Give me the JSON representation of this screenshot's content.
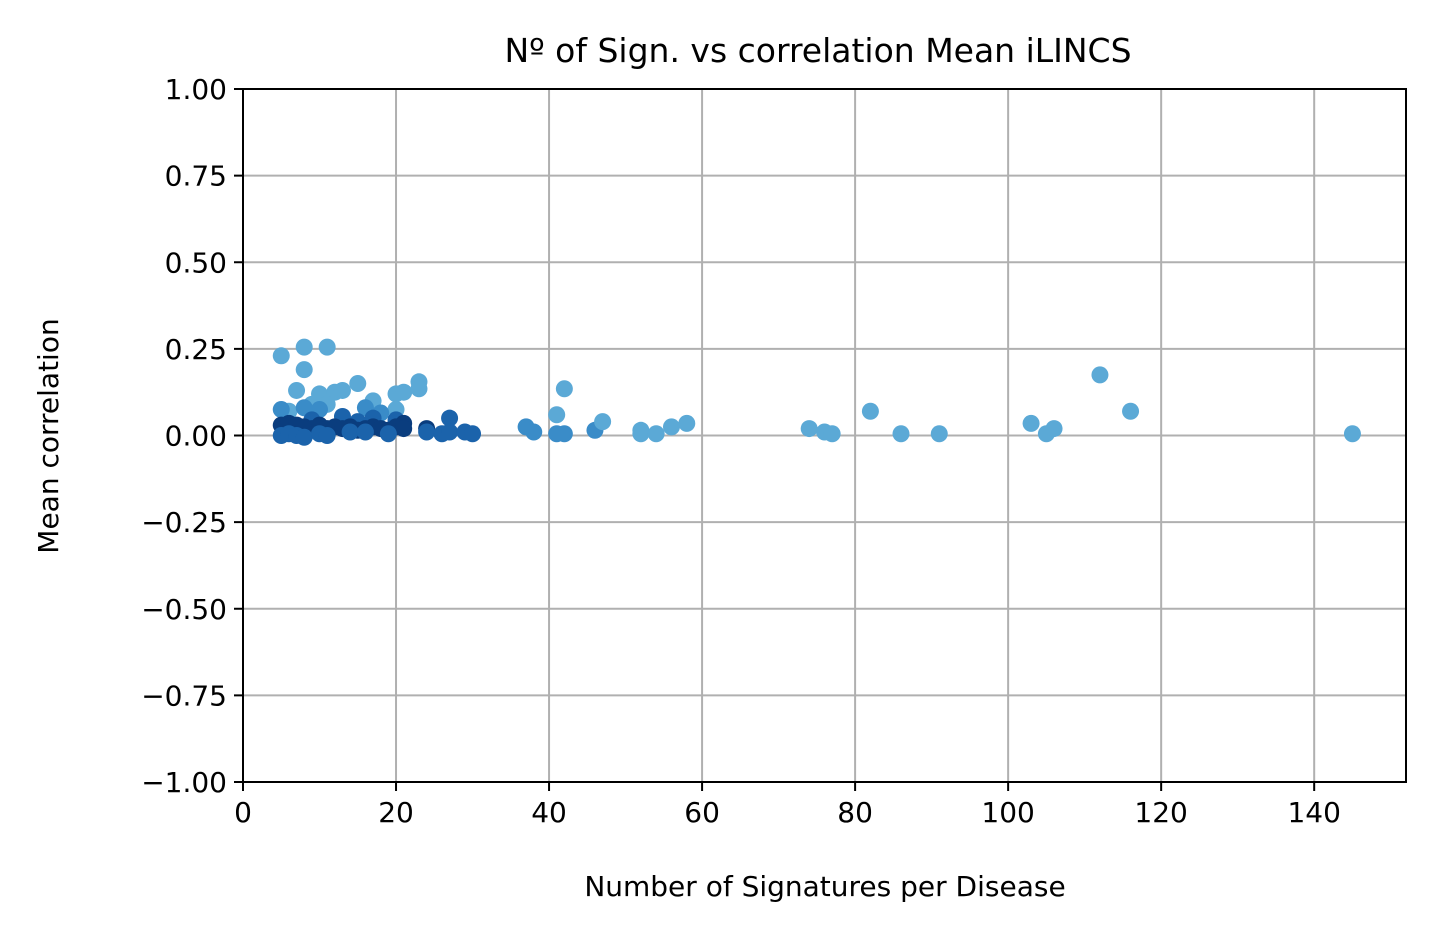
{
  "chart_data": {
    "type": "scatter",
    "title": "Nº of Sign. vs correlation Mean iLINCS",
    "xlabel": "Number of Signatures per Disease",
    "ylabel": "Mean correlation",
    "xlim": [
      0,
      152
    ],
    "ylim": [
      -1.0,
      1.0
    ],
    "grid": true,
    "legend": "none",
    "x_ticks": [
      0,
      20,
      40,
      60,
      80,
      100,
      120,
      140
    ],
    "x_tick_labels": [
      "0",
      "20",
      "40",
      "60",
      "80",
      "100",
      "120",
      "140"
    ],
    "y_ticks": [
      1.0,
      0.75,
      0.5,
      0.25,
      0.0,
      -0.25,
      -0.5,
      -0.75,
      -1.0
    ],
    "y_tick_labels": [
      "1.00",
      "0.75",
      "0.50",
      "0.25",
      "0.00",
      "−0.25",
      "−0.50",
      "−0.75",
      "−1.00"
    ],
    "colors": {
      "light": "#5ba9d6",
      "mid": "#3a8cc8",
      "dark": "#1b63ab",
      "darkest": "#0a3d7e",
      "grid": "#b0b0b0",
      "axis": "#000000"
    },
    "points": [
      {
        "x": 5,
        "y": 0.23,
        "c": "light"
      },
      {
        "x": 8,
        "y": 0.255,
        "c": "light"
      },
      {
        "x": 11,
        "y": 0.255,
        "c": "light"
      },
      {
        "x": 8,
        "y": 0.19,
        "c": "light"
      },
      {
        "x": 7,
        "y": 0.13,
        "c": "light"
      },
      {
        "x": 10,
        "y": 0.12,
        "c": "light"
      },
      {
        "x": 12,
        "y": 0.125,
        "c": "light"
      },
      {
        "x": 13,
        "y": 0.13,
        "c": "light"
      },
      {
        "x": 15,
        "y": 0.15,
        "c": "light"
      },
      {
        "x": 17,
        "y": 0.1,
        "c": "light"
      },
      {
        "x": 20,
        "y": 0.12,
        "c": "light"
      },
      {
        "x": 21,
        "y": 0.125,
        "c": "light"
      },
      {
        "x": 23,
        "y": 0.155,
        "c": "light"
      },
      {
        "x": 23,
        "y": 0.135,
        "c": "light"
      },
      {
        "x": 9,
        "y": 0.09,
        "c": "light"
      },
      {
        "x": 11,
        "y": 0.09,
        "c": "light"
      },
      {
        "x": 20,
        "y": 0.075,
        "c": "light"
      },
      {
        "x": 6,
        "y": 0.07,
        "c": "light"
      },
      {
        "x": 5,
        "y": 0.075,
        "c": "mid"
      },
      {
        "x": 8,
        "y": 0.08,
        "c": "mid"
      },
      {
        "x": 10,
        "y": 0.075,
        "c": "mid"
      },
      {
        "x": 16,
        "y": 0.08,
        "c": "mid"
      },
      {
        "x": 18,
        "y": 0.065,
        "c": "mid"
      },
      {
        "x": 13,
        "y": 0.055,
        "c": "dark"
      },
      {
        "x": 17,
        "y": 0.05,
        "c": "dark"
      },
      {
        "x": 9,
        "y": 0.045,
        "c": "dark"
      },
      {
        "x": 15,
        "y": 0.04,
        "c": "dark"
      },
      {
        "x": 20,
        "y": 0.045,
        "c": "dark"
      },
      {
        "x": 5,
        "y": 0.03,
        "c": "darkest"
      },
      {
        "x": 6,
        "y": 0.035,
        "c": "darkest"
      },
      {
        "x": 7,
        "y": 0.03,
        "c": "darkest"
      },
      {
        "x": 8,
        "y": 0.025,
        "c": "darkest"
      },
      {
        "x": 9,
        "y": 0.02,
        "c": "darkest"
      },
      {
        "x": 10,
        "y": 0.03,
        "c": "darkest"
      },
      {
        "x": 11,
        "y": 0.02,
        "c": "darkest"
      },
      {
        "x": 12,
        "y": 0.025,
        "c": "darkest"
      },
      {
        "x": 13,
        "y": 0.02,
        "c": "darkest"
      },
      {
        "x": 14,
        "y": 0.025,
        "c": "darkest"
      },
      {
        "x": 15,
        "y": 0.015,
        "c": "darkest"
      },
      {
        "x": 16,
        "y": 0.02,
        "c": "darkest"
      },
      {
        "x": 17,
        "y": 0.025,
        "c": "darkest"
      },
      {
        "x": 18,
        "y": 0.02,
        "c": "darkest"
      },
      {
        "x": 19,
        "y": 0.015,
        "c": "darkest"
      },
      {
        "x": 20,
        "y": 0.025,
        "c": "darkest"
      },
      {
        "x": 21,
        "y": 0.035,
        "c": "darkest"
      },
      {
        "x": 21,
        "y": 0.02,
        "c": "darkest"
      },
      {
        "x": 24,
        "y": 0.02,
        "c": "darkest"
      },
      {
        "x": 5,
        "y": 0.0,
        "c": "dark"
      },
      {
        "x": 6,
        "y": 0.005,
        "c": "dark"
      },
      {
        "x": 7,
        "y": 0.0,
        "c": "dark"
      },
      {
        "x": 8,
        "y": -0.005,
        "c": "dark"
      },
      {
        "x": 10,
        "y": 0.005,
        "c": "dark"
      },
      {
        "x": 11,
        "y": 0.0,
        "c": "dark"
      },
      {
        "x": 14,
        "y": 0.01,
        "c": "dark"
      },
      {
        "x": 16,
        "y": 0.01,
        "c": "dark"
      },
      {
        "x": 19,
        "y": 0.005,
        "c": "dark"
      },
      {
        "x": 24,
        "y": 0.01,
        "c": "dark"
      },
      {
        "x": 26,
        "y": 0.005,
        "c": "dark"
      },
      {
        "x": 27,
        "y": 0.05,
        "c": "dark"
      },
      {
        "x": 27,
        "y": 0.01,
        "c": "dark"
      },
      {
        "x": 29,
        "y": 0.01,
        "c": "dark"
      },
      {
        "x": 30,
        "y": 0.005,
        "c": "dark"
      },
      {
        "x": 37,
        "y": 0.025,
        "c": "mid"
      },
      {
        "x": 38,
        "y": 0.01,
        "c": "mid"
      },
      {
        "x": 41,
        "y": 0.005,
        "c": "mid"
      },
      {
        "x": 42,
        "y": 0.005,
        "c": "mid"
      },
      {
        "x": 41,
        "y": 0.06,
        "c": "light"
      },
      {
        "x": 42,
        "y": 0.135,
        "c": "light"
      },
      {
        "x": 46,
        "y": 0.015,
        "c": "mid"
      },
      {
        "x": 47,
        "y": 0.04,
        "c": "light"
      },
      {
        "x": 52,
        "y": 0.015,
        "c": "light"
      },
      {
        "x": 52,
        "y": 0.005,
        "c": "light"
      },
      {
        "x": 54,
        "y": 0.005,
        "c": "light"
      },
      {
        "x": 56,
        "y": 0.025,
        "c": "light"
      },
      {
        "x": 58,
        "y": 0.035,
        "c": "light"
      },
      {
        "x": 74,
        "y": 0.02,
        "c": "light"
      },
      {
        "x": 76,
        "y": 0.01,
        "c": "light"
      },
      {
        "x": 77,
        "y": 0.005,
        "c": "light"
      },
      {
        "x": 82,
        "y": 0.07,
        "c": "light"
      },
      {
        "x": 86,
        "y": 0.005,
        "c": "light"
      },
      {
        "x": 91,
        "y": 0.005,
        "c": "light"
      },
      {
        "x": 103,
        "y": 0.035,
        "c": "light"
      },
      {
        "x": 105,
        "y": 0.005,
        "c": "light"
      },
      {
        "x": 106,
        "y": 0.02,
        "c": "light"
      },
      {
        "x": 112,
        "y": 0.175,
        "c": "light"
      },
      {
        "x": 116,
        "y": 0.07,
        "c": "light"
      },
      {
        "x": 145,
        "y": 0.005,
        "c": "light"
      }
    ]
  }
}
